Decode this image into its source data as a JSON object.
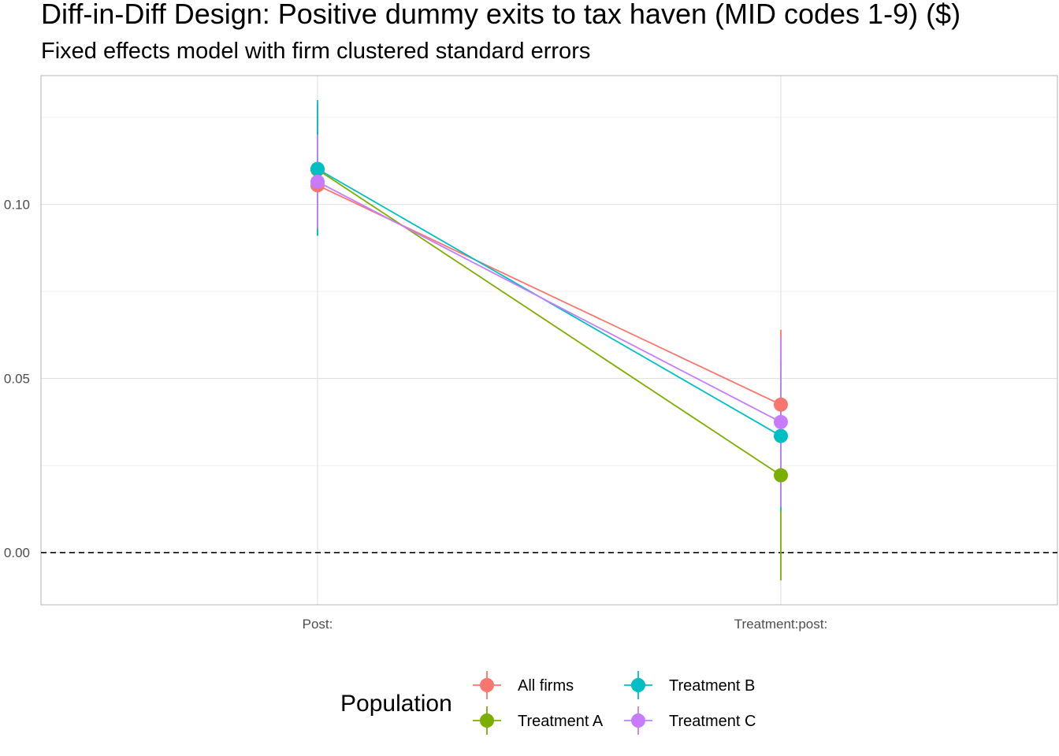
{
  "chart_data": {
    "type": "scatter",
    "title": "Diff-in-Diff Design: Positive dummy exits to tax haven (MID codes 1-9)  ($)",
    "subtitle": "Fixed effects model with firm clustered standard errors",
    "xlabel": "",
    "ylabel": "",
    "categories": [
      "Post:",
      "Treatment:post:"
    ],
    "ylim": [
      -0.015,
      0.137
    ],
    "y_ticks": [
      0.0,
      0.05,
      0.1
    ],
    "y_tick_labels": [
      "0.00",
      "0.05",
      "0.10"
    ],
    "reference_line": 0,
    "grid": true,
    "legend": {
      "title": "Population",
      "position": "bottom"
    },
    "series": [
      {
        "name": "All firms",
        "color": "#F8766D",
        "values": [
          0.1055,
          0.0425
        ],
        "ci_low": [
          0.094,
          0.021
        ],
        "ci_high": [
          0.117,
          0.064
        ]
      },
      {
        "name": "Treatment A",
        "color": "#7CAE00",
        "values": [
          0.11,
          0.0222
        ],
        "ci_low": [
          0.091,
          -0.008
        ],
        "ci_high": [
          0.129,
          0.052
        ]
      },
      {
        "name": "Treatment B",
        "color": "#00BFC4",
        "values": [
          0.1102,
          0.0335
        ],
        "ci_low": [
          0.091,
          0.012
        ],
        "ci_high": [
          0.13,
          0.055
        ]
      },
      {
        "name": "Treatment C",
        "color": "#C77CFF",
        "values": [
          0.1065,
          0.0375
        ],
        "ci_low": [
          0.093,
          0.013
        ],
        "ci_high": [
          0.12,
          0.062
        ]
      }
    ]
  }
}
